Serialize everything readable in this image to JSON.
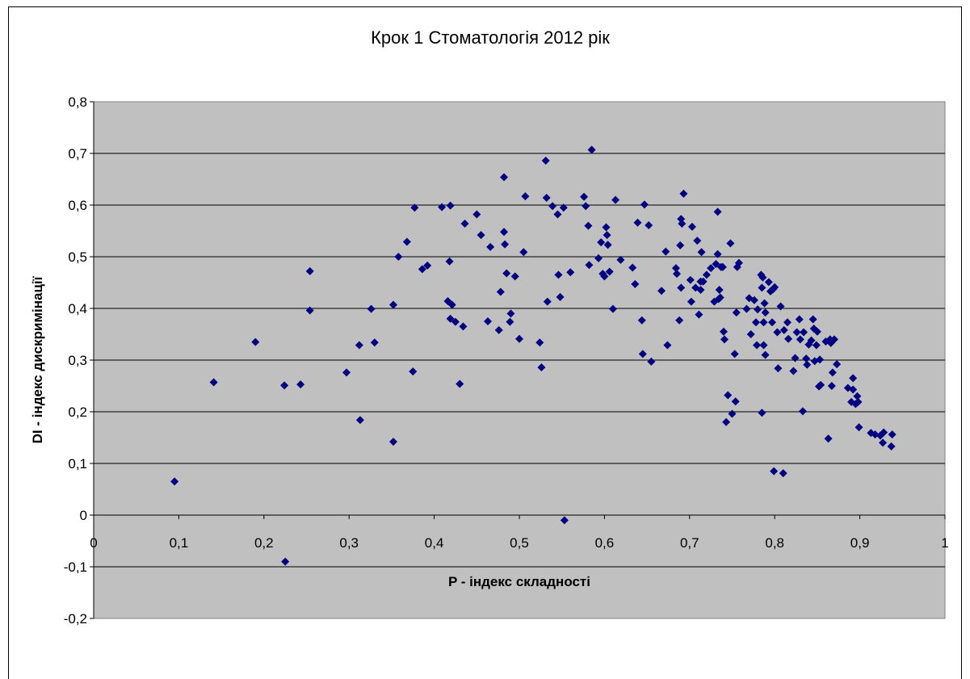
{
  "chart_data": {
    "type": "scatter",
    "title": "Крок 1 Стоматологія 2012 рік",
    "xlabel": "P - індекс складності",
    "ylabel": "DI - індекс дискримінації",
    "xlim": [
      0,
      1
    ],
    "ylim": [
      -0.2,
      0.8
    ],
    "xticks": [
      "0",
      "0,1",
      "0,2",
      "0,3",
      "0,4",
      "0,5",
      "0,6",
      "0,7",
      "0,8",
      "0,9",
      "1"
    ],
    "yticks": [
      "-0,2",
      "-0,1",
      "0",
      "0,1",
      "0,2",
      "0,3",
      "0,4",
      "0,5",
      "0,6",
      "0,7",
      "0,8"
    ],
    "grid": "horizontal",
    "plot_background": "#c0c0c0",
    "marker_color": "#000080",
    "marker_shape": "diamond",
    "points": [
      [
        0.095,
        0.065
      ],
      [
        0.141,
        0.257
      ],
      [
        0.19,
        0.335
      ],
      [
        0.225,
        -0.09
      ],
      [
        0.224,
        0.251
      ],
      [
        0.243,
        0.253
      ],
      [
        0.254,
        0.472
      ],
      [
        0.254,
        0.396
      ],
      [
        0.297,
        0.276
      ],
      [
        0.312,
        0.329
      ],
      [
        0.313,
        0.184
      ],
      [
        0.326,
        0.399
      ],
      [
        0.33,
        0.334
      ],
      [
        0.352,
        0.407
      ],
      [
        0.352,
        0.142
      ],
      [
        0.358,
        0.5
      ],
      [
        0.368,
        0.529
      ],
      [
        0.375,
        0.278
      ],
      [
        0.377,
        0.595
      ],
      [
        0.386,
        0.476
      ],
      [
        0.392,
        0.483
      ],
      [
        0.409,
        0.596
      ],
      [
        0.416,
        0.414
      ],
      [
        0.418,
        0.491
      ],
      [
        0.419,
        0.599
      ],
      [
        0.419,
        0.38
      ],
      [
        0.421,
        0.407
      ],
      [
        0.425,
        0.374
      ],
      [
        0.43,
        0.254
      ],
      [
        0.434,
        0.365
      ],
      [
        0.436,
        0.564
      ],
      [
        0.45,
        0.582
      ],
      [
        0.455,
        0.542
      ],
      [
        0.463,
        0.375
      ],
      [
        0.466,
        0.519
      ],
      [
        0.476,
        0.358
      ],
      [
        0.478,
        0.432
      ],
      [
        0.482,
        0.654
      ],
      [
        0.482,
        0.548
      ],
      [
        0.483,
        0.524
      ],
      [
        0.485,
        0.468
      ],
      [
        0.489,
        0.374
      ],
      [
        0.49,
        0.39
      ],
      [
        0.495,
        0.462
      ],
      [
        0.5,
        0.341
      ],
      [
        0.505,
        0.509
      ],
      [
        0.507,
        0.617
      ],
      [
        0.524,
        0.334
      ],
      [
        0.526,
        0.286
      ],
      [
        0.531,
        0.686
      ],
      [
        0.532,
        0.614
      ],
      [
        0.533,
        0.413
      ],
      [
        0.539,
        0.598
      ],
      [
        0.545,
        0.582
      ],
      [
        0.546,
        0.465
      ],
      [
        0.548,
        0.422
      ],
      [
        0.552,
        0.595
      ],
      [
        0.553,
        -0.01
      ],
      [
        0.56,
        0.47
      ],
      [
        0.576,
        0.616
      ],
      [
        0.578,
        0.598
      ],
      [
        0.581,
        0.56
      ],
      [
        0.582,
        0.484
      ],
      [
        0.585,
        0.707
      ],
      [
        0.593,
        0.497
      ],
      [
        0.596,
        0.528
      ],
      [
        0.598,
        0.467
      ],
      [
        0.6,
        0.462
      ],
      [
        0.602,
        0.557
      ],
      [
        0.603,
        0.542
      ],
      [
        0.604,
        0.523
      ],
      [
        0.606,
        0.471
      ],
      [
        0.61,
        0.399
      ],
      [
        0.613,
        0.61
      ],
      [
        0.619,
        0.494
      ],
      [
        0.633,
        0.479
      ],
      [
        0.636,
        0.447
      ],
      [
        0.639,
        0.566
      ],
      [
        0.644,
        0.377
      ],
      [
        0.645,
        0.312
      ],
      [
        0.647,
        0.601
      ],
      [
        0.652,
        0.561
      ],
      [
        0.655,
        0.297
      ],
      [
        0.667,
        0.434
      ],
      [
        0.672,
        0.51
      ],
      [
        0.674,
        0.329
      ],
      [
        0.684,
        0.478
      ],
      [
        0.685,
        0.467
      ],
      [
        0.688,
        0.377
      ],
      [
        0.689,
        0.522
      ],
      [
        0.69,
        0.573
      ],
      [
        0.691,
        0.564
      ],
      [
        0.69,
        0.44
      ],
      [
        0.693,
        0.622
      ],
      [
        0.701,
        0.455
      ],
      [
        0.702,
        0.413
      ],
      [
        0.703,
        0.558
      ],
      [
        0.707,
        0.44
      ],
      [
        0.709,
        0.531
      ],
      [
        0.711,
        0.388
      ],
      [
        0.713,
        0.452
      ],
      [
        0.713,
        0.436
      ],
      [
        0.714,
        0.509
      ],
      [
        0.716,
        0.452
      ],
      [
        0.72,
        0.465
      ],
      [
        0.725,
        0.478
      ],
      [
        0.729,
        0.413
      ],
      [
        0.731,
        0.486
      ],
      [
        0.733,
        0.587
      ],
      [
        0.733,
        0.505
      ],
      [
        0.734,
        0.418
      ],
      [
        0.735,
        0.436
      ],
      [
        0.736,
        0.421
      ],
      [
        0.737,
        0.48
      ],
      [
        0.739,
        0.48
      ],
      [
        0.74,
        0.355
      ],
      [
        0.741,
        0.34
      ],
      [
        0.743,
        0.18
      ],
      [
        0.745,
        0.232
      ],
      [
        0.748,
        0.526
      ],
      [
        0.75,
        0.196
      ],
      [
        0.753,
        0.312
      ],
      [
        0.754,
        0.22
      ],
      [
        0.755,
        0.392
      ],
      [
        0.756,
        0.48
      ],
      [
        0.758,
        0.488
      ],
      [
        0.767,
        0.399
      ],
      [
        0.77,
        0.42
      ],
      [
        0.772,
        0.35
      ],
      [
        0.776,
        0.416
      ],
      [
        0.778,
        0.373
      ],
      [
        0.779,
        0.329
      ],
      [
        0.78,
        0.398
      ],
      [
        0.784,
        0.465
      ],
      [
        0.785,
        0.44
      ],
      [
        0.785,
        0.198
      ],
      [
        0.786,
        0.46
      ],
      [
        0.787,
        0.373
      ],
      [
        0.787,
        0.329
      ],
      [
        0.788,
        0.41
      ],
      [
        0.789,
        0.392
      ],
      [
        0.789,
        0.31
      ],
      [
        0.793,
        0.451
      ],
      [
        0.795,
        0.433
      ],
      [
        0.797,
        0.373
      ],
      [
        0.798,
        0.437
      ],
      [
        0.799,
        0.085
      ],
      [
        0.8,
        0.441
      ],
      [
        0.803,
        0.354
      ],
      [
        0.804,
        0.284
      ],
      [
        0.807,
        0.404
      ],
      [
        0.81,
        0.081
      ],
      [
        0.811,
        0.358
      ],
      [
        0.815,
        0.373
      ],
      [
        0.816,
        0.341
      ],
      [
        0.822,
        0.279
      ],
      [
        0.824,
        0.304
      ],
      [
        0.826,
        0.354
      ],
      [
        0.829,
        0.379
      ],
      [
        0.83,
        0.34
      ],
      [
        0.833,
        0.201
      ],
      [
        0.834,
        0.354
      ],
      [
        0.837,
        0.303
      ],
      [
        0.838,
        0.291
      ],
      [
        0.84,
        0.33
      ],
      [
        0.843,
        0.338
      ],
      [
        0.845,
        0.379
      ],
      [
        0.846,
        0.361
      ],
      [
        0.847,
        0.298
      ],
      [
        0.849,
        0.329
      ],
      [
        0.85,
        0.355
      ],
      [
        0.852,
        0.249
      ],
      [
        0.853,
        0.301
      ],
      [
        0.854,
        0.252
      ],
      [
        0.86,
        0.336
      ],
      [
        0.863,
        0.148
      ],
      [
        0.865,
        0.34
      ],
      [
        0.866,
        0.333
      ],
      [
        0.867,
        0.25
      ],
      [
        0.868,
        0.276
      ],
      [
        0.87,
        0.34
      ],
      [
        0.873,
        0.292
      ],
      [
        0.886,
        0.246
      ],
      [
        0.89,
        0.219
      ],
      [
        0.892,
        0.243
      ],
      [
        0.892,
        0.265
      ],
      [
        0.895,
        0.215
      ],
      [
        0.897,
        0.23
      ],
      [
        0.898,
        0.219
      ],
      [
        0.899,
        0.17
      ],
      [
        0.913,
        0.159
      ],
      [
        0.918,
        0.156
      ],
      [
        0.924,
        0.154
      ],
      [
        0.927,
        0.14
      ],
      [
        0.928,
        0.16
      ],
      [
        0.937,
        0.133
      ],
      [
        0.938,
        0.156
      ]
    ]
  }
}
